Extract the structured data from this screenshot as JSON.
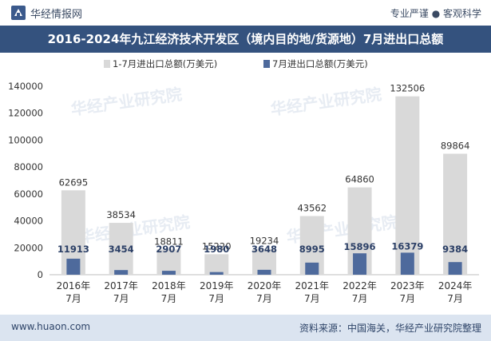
{
  "header": {
    "brand": "华经情报网",
    "tagline": "专业严谨 ● 客观科学"
  },
  "footer": {
    "website": "www.huaon.com",
    "source": "资料来源：中国海关，华经产业研究院整理"
  },
  "watermark": "华经产业研究院",
  "chart_data": {
    "type": "bar",
    "title": "2016-2024年九江经济技术开发区（境内目的地/货源地）7月进出口总额",
    "categories": [
      "2016年7月",
      "2017年7月",
      "2018年7月",
      "2019年7月",
      "2020年7月",
      "2021年7月",
      "2022年7月",
      "2023年7月",
      "2024年7月"
    ],
    "category_lines": [
      [
        "2016年",
        "7月"
      ],
      [
        "2017年",
        "7月"
      ],
      [
        "2018年",
        "7月"
      ],
      [
        "2019年",
        "7月"
      ],
      [
        "2020年",
        "7月"
      ],
      [
        "2021年",
        "7月"
      ],
      [
        "2022年",
        "7月"
      ],
      [
        "2023年",
        "7月"
      ],
      [
        "2024年",
        "7月"
      ]
    ],
    "series": [
      {
        "name": "1-7月进出口总额(万美元)",
        "values": [
          62695,
          38534,
          18811,
          15220,
          19234,
          43562,
          64860,
          132506,
          89864
        ],
        "color": "#d9d9d9"
      },
      {
        "name": "7月进出口总额(万美元)",
        "values": [
          11913,
          3454,
          2907,
          1980,
          3648,
          8995,
          15896,
          16379,
          9384
        ],
        "color": "#4e6a9c"
      }
    ],
    "ylim": [
      0,
      140000
    ],
    "yticks": [
      0,
      20000,
      40000,
      60000,
      80000,
      100000,
      120000,
      140000
    ],
    "xlabel": "",
    "ylabel": "",
    "legend_position": "top-left"
  }
}
